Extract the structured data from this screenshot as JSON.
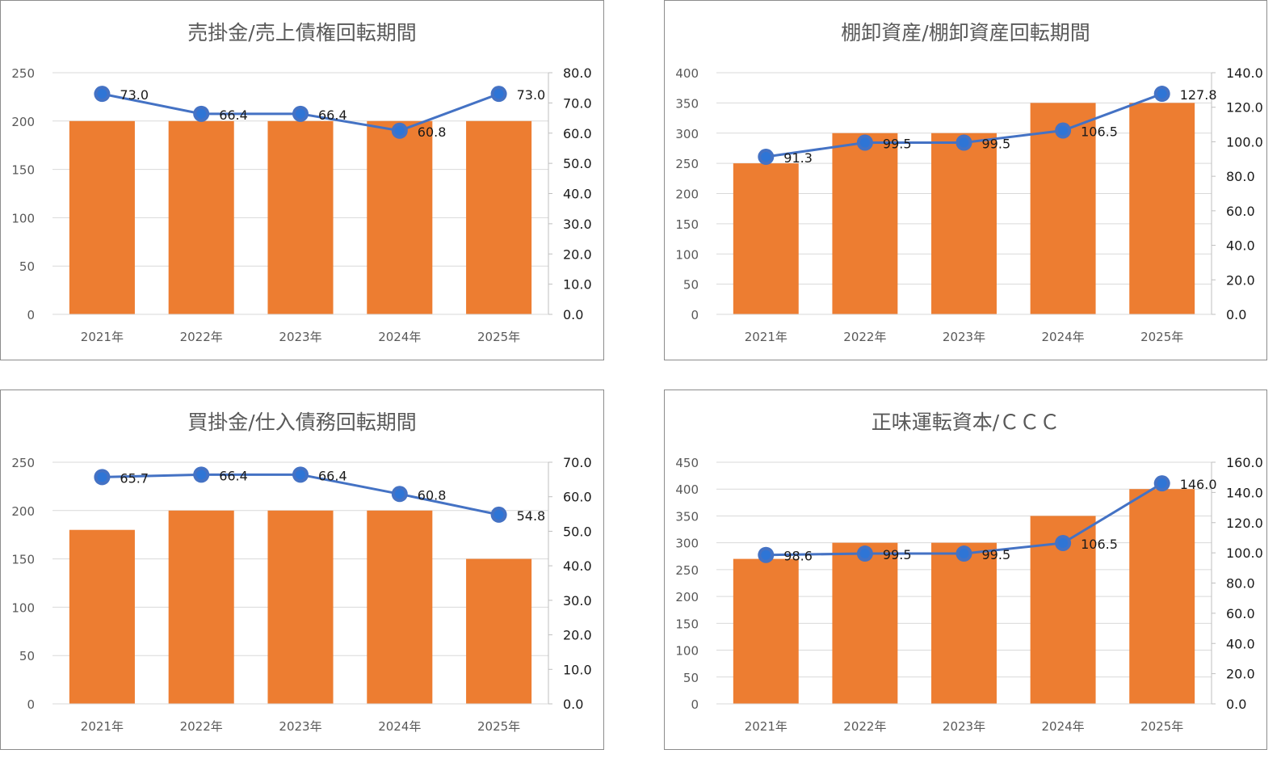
{
  "chart_data": [
    {
      "type": "bar",
      "title": "売掛金/売上債権回転期間",
      "categories": [
        "2021年",
        "2022年",
        "2023年",
        "2024年",
        "2025年"
      ],
      "series": [
        {
          "type": "bar",
          "axis": "left",
          "values": [
            200,
            200,
            200,
            200,
            200
          ]
        },
        {
          "type": "line",
          "axis": "right",
          "values": [
            73.0,
            66.4,
            66.4,
            60.8,
            73.0
          ],
          "labels": [
            "73.0",
            "66.4",
            "66.4",
            "60.8",
            "73.0"
          ]
        }
      ],
      "ylim": [
        0,
        250
      ],
      "yticks": [
        0,
        50,
        100,
        150,
        200,
        250
      ],
      "ytick_labels": [
        "0",
        "50",
        "100",
        "150",
        "200",
        "250"
      ],
      "y2lim": [
        0,
        80
      ],
      "y2ticks": [
        0,
        10,
        20,
        30,
        40,
        50,
        60,
        70,
        80
      ],
      "y2tick_labels": [
        "0.0",
        "10.0",
        "20.0",
        "30.0",
        "40.0",
        "50.0",
        "60.0",
        "70.0",
        "80.0"
      ],
      "grid": true,
      "legend": false
    },
    {
      "type": "bar",
      "title": "棚卸資産/棚卸資産回転期間",
      "categories": [
        "2021年",
        "2022年",
        "2023年",
        "2024年",
        "2025年"
      ],
      "series": [
        {
          "type": "bar",
          "axis": "left",
          "values": [
            250,
            300,
            300,
            350,
            350
          ]
        },
        {
          "type": "line",
          "axis": "right",
          "values": [
            91.3,
            99.5,
            99.5,
            106.5,
            127.8
          ],
          "labels": [
            "91.3",
            "99.5",
            "99.5",
            "106.5",
            "127.8"
          ]
        }
      ],
      "ylim": [
        0,
        400
      ],
      "yticks": [
        0,
        50,
        100,
        150,
        200,
        250,
        300,
        350,
        400
      ],
      "ytick_labels": [
        "0",
        "50",
        "100",
        "150",
        "200",
        "250",
        "300",
        "350",
        "400"
      ],
      "y2lim": [
        0,
        140
      ],
      "y2ticks": [
        0,
        20,
        40,
        60,
        80,
        100,
        120,
        140
      ],
      "y2tick_labels": [
        "0.0",
        "20.0",
        "40.0",
        "60.0",
        "80.0",
        "100.0",
        "120.0",
        "140.0"
      ],
      "grid": true,
      "legend": false
    },
    {
      "type": "bar",
      "title": "買掛金/仕入債務回転期間",
      "categories": [
        "2021年",
        "2022年",
        "2023年",
        "2024年",
        "2025年"
      ],
      "series": [
        {
          "type": "bar",
          "axis": "left",
          "values": [
            180,
            200,
            200,
            200,
            150
          ]
        },
        {
          "type": "line",
          "axis": "right",
          "values": [
            65.7,
            66.4,
            66.4,
            60.8,
            54.8
          ],
          "labels": [
            "65.7",
            "66.4",
            "66.4",
            "60.8",
            "54.8"
          ]
        }
      ],
      "ylim": [
        0,
        250
      ],
      "yticks": [
        0,
        50,
        100,
        150,
        200,
        250
      ],
      "ytick_labels": [
        "0",
        "50",
        "100",
        "150",
        "200",
        "250"
      ],
      "y2lim": [
        0,
        70
      ],
      "y2ticks": [
        0,
        10,
        20,
        30,
        40,
        50,
        60,
        70
      ],
      "y2tick_labels": [
        "0.0",
        "10.0",
        "20.0",
        "30.0",
        "40.0",
        "50.0",
        "60.0",
        "70.0"
      ],
      "grid": true,
      "legend": false
    },
    {
      "type": "bar",
      "title": "正味運転資本/ＣＣＣ",
      "categories": [
        "2021年",
        "2022年",
        "2023年",
        "2024年",
        "2025年"
      ],
      "series": [
        {
          "type": "bar",
          "axis": "left",
          "values": [
            270,
            300,
            300,
            350,
            400
          ]
        },
        {
          "type": "line",
          "axis": "right",
          "values": [
            98.6,
            99.5,
            99.5,
            106.5,
            146.0
          ],
          "labels": [
            "98.6",
            "99.5",
            "99.5",
            "106.5",
            "146.0"
          ]
        }
      ],
      "ylim": [
        0,
        450
      ],
      "yticks": [
        0,
        50,
        100,
        150,
        200,
        250,
        300,
        350,
        400,
        450
      ],
      "ytick_labels": [
        "0",
        "50",
        "100",
        "150",
        "200",
        "250",
        "300",
        "350",
        "400",
        "450"
      ],
      "y2lim": [
        0,
        160
      ],
      "y2ticks": [
        0,
        20,
        40,
        60,
        80,
        100,
        120,
        140,
        160
      ],
      "y2tick_labels": [
        "0.0",
        "20.0",
        "40.0",
        "60.0",
        "80.0",
        "100.0",
        "120.0",
        "140.0",
        "160.0"
      ],
      "grid": true,
      "legend": false
    }
  ],
  "colors": {
    "bar": "#ed7d31",
    "line": "#4472c4",
    "marker": "#2e75d6",
    "grid": "#d9d9d9",
    "tick_text": "#595959"
  }
}
